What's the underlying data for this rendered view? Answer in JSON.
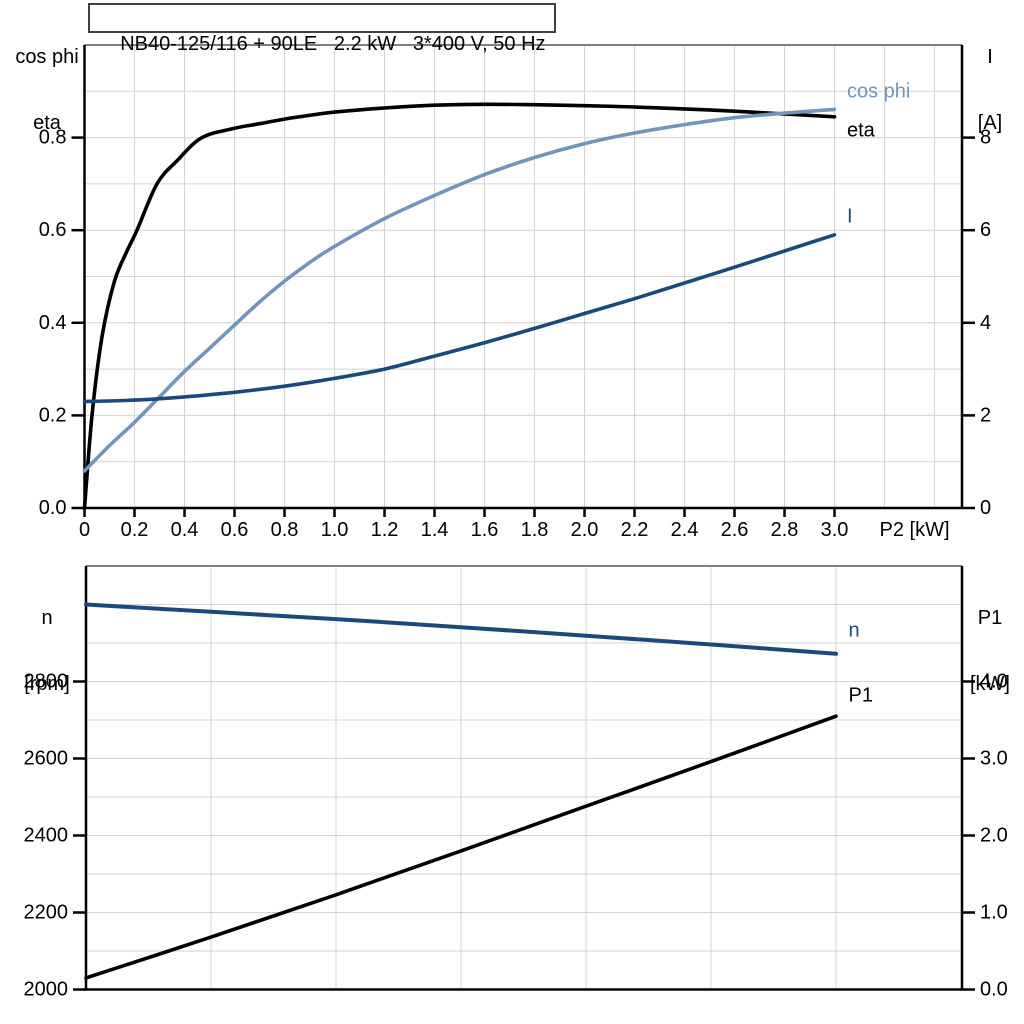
{
  "title_box": {
    "text": "NB40-125/116 + 90LE   2.2 kW   3*400 V, 50 Hz"
  },
  "colors": {
    "black_curve": "#000000",
    "dark_blue_curve": "#1a4a7d",
    "light_blue_curve": "#7295bd",
    "gridline": "#d4d4d4",
    "chart_top_border": "#7f7f7f",
    "axis": "#000000"
  },
  "chart_data": [
    {
      "type": "line",
      "name": "motor-performance-curves",
      "x_axis": {
        "label": "P2 [kW]",
        "range": [
          0,
          3.51
        ],
        "grid_step": 0.2,
        "ticks": [
          0,
          0.2,
          0.4,
          0.6,
          0.8,
          1.0,
          1.2,
          1.4,
          1.6,
          1.8,
          2.0,
          2.2,
          2.4,
          2.6,
          2.8,
          3.0
        ],
        "tick_labels": [
          "0",
          "0.2",
          "0.4",
          "0.6",
          "0.8",
          "1.0",
          "1.2",
          "1.4",
          "1.6",
          "1.8",
          "2.0",
          "2.2",
          "2.4",
          "2.6",
          "2.8",
          "3.0"
        ]
      },
      "left_axis": {
        "header": [
          "cos phi",
          "eta"
        ],
        "range": [
          0,
          1.0
        ],
        "grid_step": 0.1,
        "ticks": [
          0,
          0.2,
          0.4,
          0.6,
          0.8
        ],
        "tick_labels": [
          "0.0",
          "0.2",
          "0.4",
          "0.6",
          "0.8"
        ]
      },
      "right_axis": {
        "header": [
          "I",
          "[A]"
        ],
        "range": [
          0,
          10
        ],
        "grid_step": 1,
        "ticks": [
          0,
          2,
          4,
          6,
          8
        ],
        "tick_labels": [
          "0",
          "2",
          "4",
          "6",
          "8"
        ]
      },
      "series": [
        {
          "name": "eta",
          "label": "eta",
          "axis": "left",
          "color": "#000000",
          "width": 3.6,
          "label_at": [
            3.05,
            0.815
          ],
          "x": [
            0,
            0.03,
            0.07,
            0.12,
            0.17,
            0.21,
            0.29,
            0.37,
            0.47,
            0.6,
            0.7,
            0.8,
            0.9,
            1.0,
            1.2,
            1.4,
            1.6,
            1.8,
            2.0,
            2.2,
            2.4,
            2.6,
            2.8,
            3.0
          ],
          "y": [
            0,
            0.2,
            0.37,
            0.49,
            0.555,
            0.6,
            0.7,
            0.75,
            0.8,
            0.82,
            0.83,
            0.84,
            0.848,
            0.855,
            0.864,
            0.87,
            0.872,
            0.871,
            0.869,
            0.866,
            0.862,
            0.857,
            0.851,
            0.845
          ]
        },
        {
          "name": "cos_phi",
          "label": "cos phi",
          "axis": "left",
          "color": "#7295bd",
          "width": 3.6,
          "label_at": [
            3.05,
            0.9
          ],
          "x": [
            0,
            0.1,
            0.2,
            0.3,
            0.4,
            0.5,
            0.6,
            0.7,
            0.8,
            0.9,
            1.0,
            1.2,
            1.4,
            1.6,
            1.8,
            2.0,
            2.2,
            2.4,
            2.6,
            2.8,
            3.0
          ],
          "y": [
            0.08,
            0.135,
            0.185,
            0.24,
            0.295,
            0.345,
            0.395,
            0.445,
            0.49,
            0.53,
            0.565,
            0.625,
            0.675,
            0.72,
            0.757,
            0.787,
            0.81,
            0.828,
            0.843,
            0.853,
            0.861
          ]
        },
        {
          "name": "I",
          "label": "I",
          "axis": "right",
          "color": "#1a4a7d",
          "width": 3.6,
          "label_at": [
            3.05,
            6.3
          ],
          "x": [
            0,
            0.2,
            0.4,
            0.6,
            0.8,
            1.0,
            1.2,
            1.4,
            1.6,
            1.8,
            2.0,
            2.2,
            2.4,
            2.6,
            2.8,
            3.0
          ],
          "y": [
            2.3,
            2.33,
            2.4,
            2.5,
            2.63,
            2.8,
            3.0,
            3.28,
            3.57,
            3.88,
            4.2,
            4.52,
            4.86,
            5.2,
            5.55,
            5.9
          ]
        }
      ]
    },
    {
      "type": "line",
      "name": "speed-and-input-power-curves",
      "x_axis": {
        "label": "",
        "range": [
          0,
          3.504
        ],
        "grid_step": 0.5,
        "ticks": [],
        "tick_labels": []
      },
      "left_axis": {
        "header": [
          "n",
          "[rpm]"
        ],
        "range": [
          2000,
          3100
        ],
        "grid_step": 100,
        "ticks": [
          2000,
          2200,
          2400,
          2600,
          2800
        ],
        "tick_labels": [
          "2000",
          "2200",
          "2400",
          "2600",
          "2800"
        ]
      },
      "right_axis": {
        "header": [
          "P1",
          "[kW]"
        ],
        "range": [
          0,
          5.5
        ],
        "grid_step": 0.5,
        "ticks": [
          0,
          1,
          2,
          3,
          4
        ],
        "tick_labels": [
          "0.0",
          "1.0",
          "2.0",
          "3.0",
          "4.0"
        ]
      },
      "series": [
        {
          "name": "n",
          "label": "n",
          "axis": "left",
          "color": "#1a4a7d",
          "width": 4,
          "label_at": [
            3.05,
            2932
          ],
          "x": [
            0,
            0.5,
            1.0,
            1.5,
            2.0,
            2.5,
            3.0
          ],
          "y": [
            3000,
            2981,
            2962,
            2941,
            2919,
            2896,
            2872
          ]
        },
        {
          "name": "P1",
          "label": "P1",
          "axis": "right",
          "color": "#000000",
          "width": 3.6,
          "label_at": [
            3.05,
            3.82
          ],
          "x": [
            0,
            0.5,
            1.0,
            1.5,
            2.0,
            2.5,
            3.0
          ],
          "y": [
            0.15,
            0.68,
            1.23,
            1.8,
            2.38,
            2.96,
            3.55
          ]
        }
      ]
    }
  ]
}
